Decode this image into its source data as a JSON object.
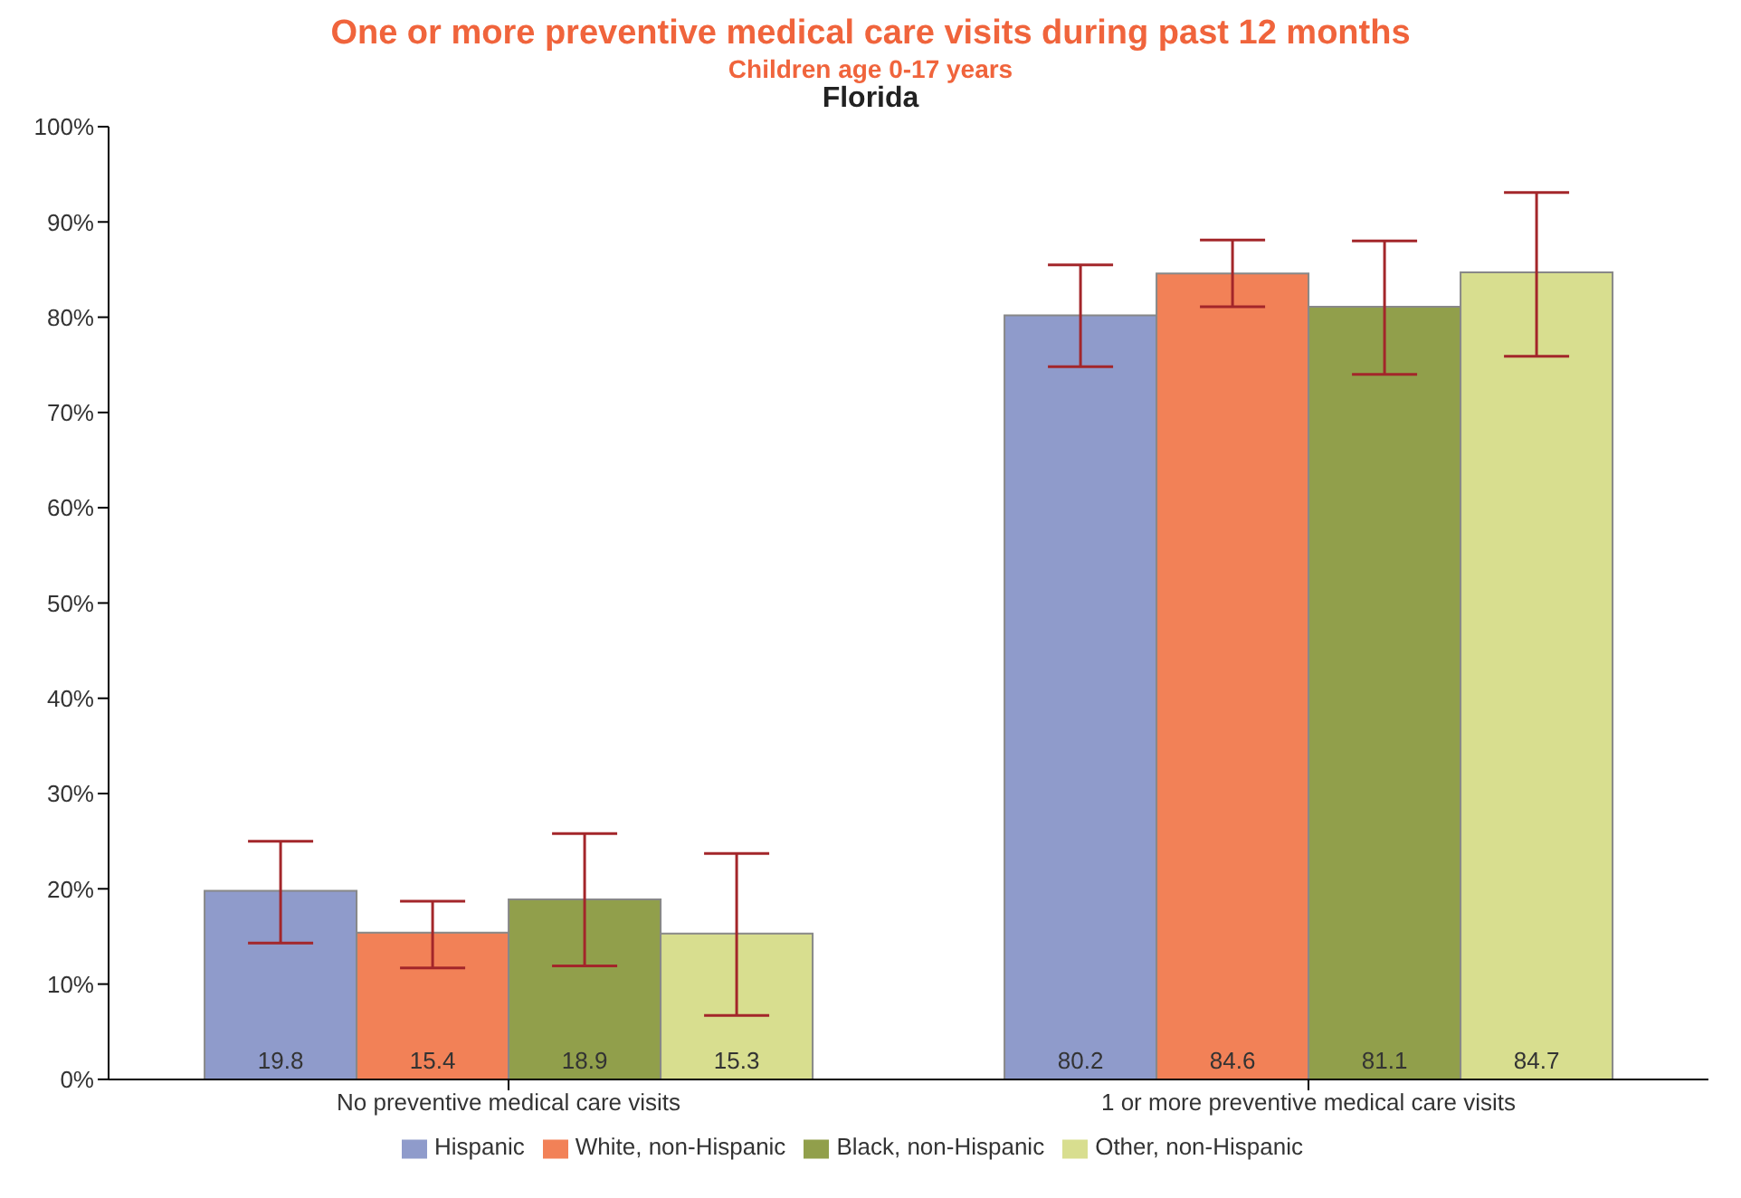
{
  "chart_data": {
    "type": "bar",
    "title": "One or more preventive medical care visits during past 12 months",
    "subtitle": "Children age 0-17 years",
    "annotations": [
      "Florida"
    ],
    "categories": [
      "No preventive medical care visits",
      "1 or more preventive medical care visits"
    ],
    "series": [
      {
        "name": "Hispanic",
        "color": "#8f9bcb",
        "values": [
          19.8,
          80.2
        ],
        "errors": [
          [
            14.3,
            25.0
          ],
          [
            74.8,
            85.5
          ]
        ]
      },
      {
        "name": "White, non-Hispanic",
        "color": "#f28157",
        "values": [
          15.4,
          84.6
        ],
        "errors": [
          [
            11.7,
            18.7
          ],
          [
            81.1,
            88.1
          ]
        ]
      },
      {
        "name": "Black, non-Hispanic",
        "color": "#919f4b",
        "values": [
          18.9,
          81.1
        ],
        "errors": [
          [
            11.9,
            25.8
          ],
          [
            74.0,
            88.0
          ]
        ]
      },
      {
        "name": "Other, non-Hispanic",
        "color": "#d8de8f",
        "values": [
          15.3,
          84.7
        ],
        "errors": [
          [
            6.7,
            23.7
          ],
          [
            75.9,
            93.1
          ]
        ]
      }
    ],
    "ylim": [
      0,
      100
    ],
    "yticks": [
      {
        "value": 0,
        "label": "0%"
      },
      {
        "value": 10,
        "label": "10%"
      },
      {
        "value": 20,
        "label": "20%"
      },
      {
        "value": 30,
        "label": "30%"
      },
      {
        "value": 40,
        "label": "40%"
      },
      {
        "value": 50,
        "label": "50%"
      },
      {
        "value": 60,
        "label": "60%"
      },
      {
        "value": 70,
        "label": "70%"
      },
      {
        "value": 80,
        "label": "80%"
      },
      {
        "value": 90,
        "label": "90%"
      },
      {
        "value": 100,
        "label": "100%"
      }
    ],
    "data_labels": true,
    "grid": false,
    "legend": "bottom"
  }
}
